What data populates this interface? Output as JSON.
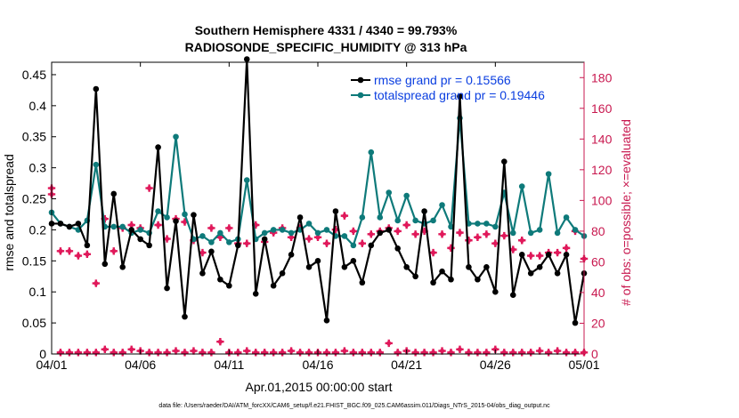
{
  "chart_data": {
    "type": "line",
    "title": "Southern Hemisphere 4331 / 4340 = 99.793%",
    "subtitle": "RADIOSONDE_SPECIFIC_HUMIDITY @ 313 hPa",
    "xlabel": "Apr.01,2015 00:00:00 start",
    "ylabel": "rmse and totalspread",
    "ylabel_right": "# of obs: o=possible; ×=evaluated",
    "footnote": "data file: /Users/raeder/DAI/ATM_forcXX/CAM6_setup/f.e21.FHIST_BGC.f09_025.CAM6assim.011/Diags_NTrS_2015-04/obs_diag_output.nc",
    "x_range_days": [
      0,
      30
    ],
    "y_range": [
      0,
      0.47
    ],
    "y2_range": [
      0,
      190
    ],
    "x_ticks": [
      0,
      5,
      10,
      15,
      20,
      25,
      30
    ],
    "x_tick_labels": [
      "04/01",
      "04/06",
      "04/11",
      "04/16",
      "04/21",
      "04/26",
      "05/01"
    ],
    "y_ticks": [
      "0",
      "0.05",
      "0.1",
      "0.15",
      "0.2",
      "0.25",
      "0.3",
      "0.35",
      "0.4",
      "0.45"
    ],
    "y2_ticks": [
      "0",
      "20",
      "40",
      "60",
      "80",
      "100",
      "120",
      "140",
      "160",
      "180"
    ],
    "colors": {
      "rmse": "#000000",
      "spread": "#0e7a7a",
      "obs": "#e0185a",
      "legend_text": "#0a3ee0",
      "right_axis": "#c8184f"
    },
    "series": [
      {
        "name": "rmse grand pr = 0.15566",
        "x": [
          0,
          0.5,
          1,
          1.5,
          2,
          2.5,
          3,
          3.5,
          4,
          4.5,
          5,
          5.5,
          6,
          6.5,
          7,
          7.5,
          8,
          8.5,
          9,
          9.5,
          10,
          10.5,
          11,
          11.5,
          12,
          12.5,
          13,
          13.5,
          14,
          14.5,
          15,
          15.5,
          16,
          16.5,
          17,
          17.5,
          18,
          18.5,
          19,
          19.5,
          20,
          20.5,
          21,
          21.5,
          22,
          22.5,
          23,
          23.5,
          24,
          24.5,
          25,
          25.5,
          26,
          26.5,
          27,
          27.5,
          28,
          28.5,
          29,
          29.5,
          30
        ],
        "values": [
          0.21,
          0.21,
          0.205,
          0.21,
          0.175,
          0.427,
          0.145,
          0.258,
          0.14,
          0.2,
          0.185,
          0.175,
          0.333,
          0.106,
          0.214,
          0.06,
          0.224,
          0.13,
          0.165,
          0.12,
          0.11,
          0.175,
          0.475,
          0.097,
          0.185,
          0.11,
          0.13,
          0.16,
          0.22,
          0.14,
          0.15,
          0.054,
          0.23,
          0.14,
          0.15,
          0.115,
          0.175,
          0.195,
          0.2,
          0.17,
          0.14,
          0.125,
          0.23,
          0.115,
          0.133,
          0.12,
          0.415,
          0.14,
          0.12,
          0.14,
          0.1,
          0.31,
          0.095,
          0.16,
          0.13,
          0.14,
          0.16,
          0.13,
          0.16,
          0.05,
          0.13
        ]
      },
      {
        "name": "totalspread grand pr = 0.19446",
        "x": [
          0,
          0.5,
          1,
          1.5,
          2,
          2.5,
          3,
          3.5,
          4,
          4.5,
          5,
          5.5,
          6,
          6.5,
          7,
          7.5,
          8,
          8.5,
          9,
          9.5,
          10,
          10.5,
          11,
          11.5,
          12,
          12.5,
          13,
          13.5,
          14,
          14.5,
          15,
          15.5,
          16,
          16.5,
          17,
          17.5,
          18,
          18.5,
          19,
          19.5,
          20,
          20.5,
          21,
          21.5,
          22,
          22.5,
          23,
          23.5,
          24,
          24.5,
          25,
          25.5,
          26,
          26.5,
          27,
          27.5,
          28,
          28.5,
          29,
          29.5,
          30
        ],
        "values": [
          0.228,
          0.21,
          0.205,
          0.2,
          0.215,
          0.305,
          0.205,
          0.205,
          0.205,
          0.195,
          0.2,
          0.195,
          0.23,
          0.22,
          0.35,
          0.225,
          0.185,
          0.19,
          0.18,
          0.195,
          0.18,
          0.185,
          0.28,
          0.185,
          0.195,
          0.2,
          0.2,
          0.195,
          0.2,
          0.21,
          0.195,
          0.2,
          0.19,
          0.19,
          0.175,
          0.22,
          0.325,
          0.22,
          0.26,
          0.215,
          0.255,
          0.215,
          0.21,
          0.215,
          0.24,
          0.205,
          0.38,
          0.21,
          0.21,
          0.21,
          0.205,
          0.26,
          0.195,
          0.27,
          0.195,
          0.2,
          0.29,
          0.195,
          0.22,
          0.2,
          0.19
        ]
      }
    ],
    "obs_possible": {
      "x": [
        0,
        0.5,
        1,
        1.5,
        2,
        2.5,
        3,
        3.5,
        4,
        4.5,
        5,
        5.5,
        6,
        6.5,
        7,
        7.5,
        8,
        8.5,
        9,
        9.5,
        10,
        10.5,
        11,
        11.5,
        12,
        12.5,
        13,
        13.5,
        14,
        14.5,
        15,
        15.5,
        16,
        16.5,
        17,
        17.5,
        18,
        18.5,
        19,
        19.5,
        20,
        20.5,
        21,
        21.5,
        22,
        22.5,
        23,
        23.5,
        24,
        24.5,
        25,
        25.5,
        26,
        26.5,
        27,
        27.5,
        28,
        28.5,
        29,
        29.5,
        30
      ],
      "values": [
        108,
        67,
        67,
        64,
        65,
        46,
        88,
        67,
        82,
        84,
        82,
        108,
        84,
        75,
        88,
        86,
        74,
        66,
        82,
        76,
        82,
        72,
        72,
        84,
        73,
        79,
        82,
        76,
        82,
        75,
        76,
        72,
        81,
        90,
        80,
        72,
        78,
        80,
        82,
        80,
        84,
        78,
        80,
        66,
        78,
        69,
        79,
        74,
        76,
        78,
        72,
        77,
        68,
        74,
        64,
        64,
        66,
        66,
        69,
        80,
        62
      ]
    },
    "obs_evaluated": {
      "x": [
        0,
        0.5,
        1,
        1.5,
        2,
        2.5,
        3,
        3.5,
        4,
        4.5,
        5,
        5.5,
        6,
        6.5,
        7,
        7.5,
        8,
        8.5,
        9,
        9.5,
        10,
        10.5,
        11,
        11.5,
        12,
        12.5,
        13,
        13.5,
        14,
        14.5,
        15,
        15.5,
        16,
        16.5,
        17,
        17.5,
        18,
        18.5,
        19,
        19.5,
        20,
        20.5,
        21,
        21.5,
        22,
        22.5,
        23,
        23.5,
        24,
        24.5,
        25,
        25.5,
        26,
        26.5,
        27,
        27.5,
        28,
        28.5,
        29,
        29.5,
        30
      ],
      "values": [
        104,
        1,
        1,
        1,
        1,
        1,
        3,
        1,
        1,
        3,
        2,
        1,
        1,
        1,
        2,
        1,
        2,
        1,
        1,
        8,
        1,
        1,
        2,
        1,
        1,
        1,
        1,
        2,
        1,
        1,
        1,
        1,
        1,
        2,
        1,
        1,
        1,
        1,
        7,
        1,
        2,
        1,
        1,
        1,
        2,
        1,
        3,
        1,
        1,
        1,
        3,
        1,
        1,
        1,
        1,
        2,
        1,
        2,
        1,
        1,
        1
      ]
    }
  }
}
